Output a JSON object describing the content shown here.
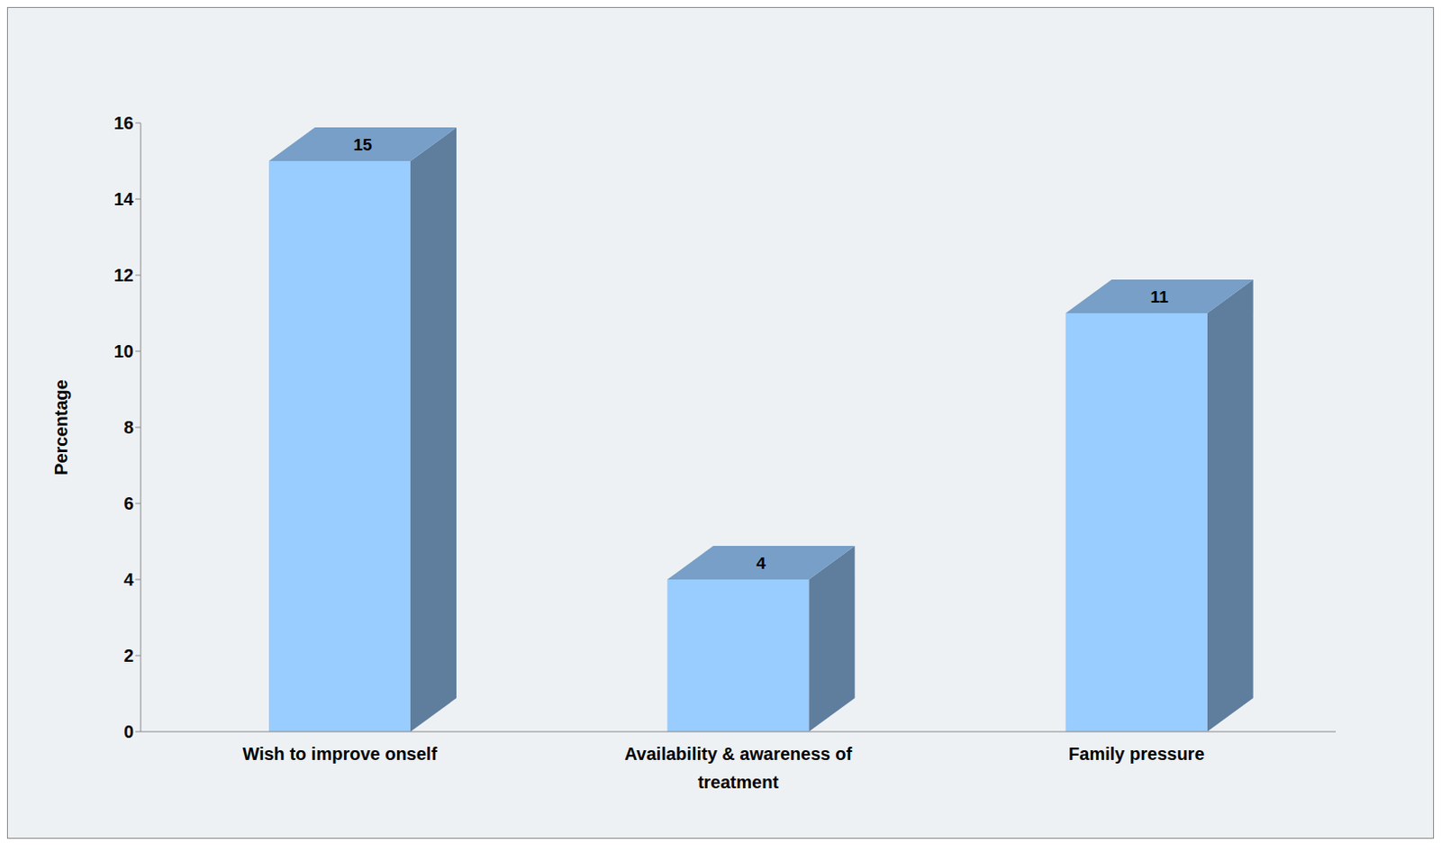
{
  "chart_data": {
    "type": "bar",
    "categories": [
      "Wish to improve onself",
      "Availability & awareness of treatment",
      "Family pressure"
    ],
    "values": [
      15,
      4,
      11
    ],
    "color": "#99ccff",
    "y_label": "Percentage",
    "ylim": [
      0,
      16
    ],
    "yticks": [
      0,
      2,
      4,
      6,
      8,
      10,
      12,
      14,
      16
    ],
    "grid": false,
    "data_labels": true
  }
}
